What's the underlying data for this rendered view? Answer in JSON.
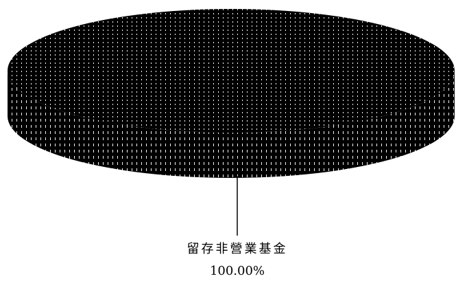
{
  "chart_data": {
    "type": "pie",
    "style": "3d",
    "categories": [
      "留存非營業基金"
    ],
    "values": [
      100.0
    ],
    "data_labels": [
      "100.00%"
    ],
    "legend": "none",
    "colors": {
      "slice_fill": "#000000",
      "slice_pattern_dots": "#ffffff",
      "leader_line": "#000000",
      "label_text": "#000000"
    }
  }
}
